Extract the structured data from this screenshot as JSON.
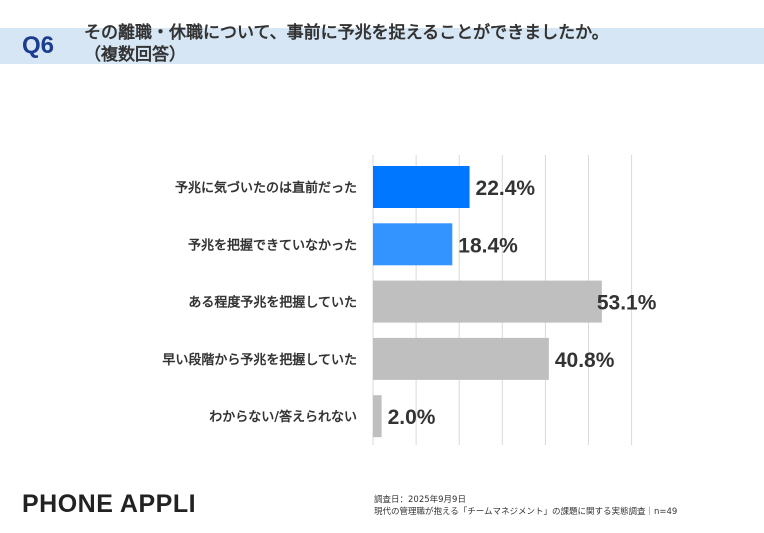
{
  "header": {
    "question_no": "Q6",
    "title": "その離職・休職について、事前に予兆を捉えることができましたか。",
    "subtitle": "（複数回答）"
  },
  "chart_data": {
    "type": "bar",
    "orientation": "horizontal",
    "categories": [
      "予兆に気づいたのは直前だった",
      "予兆を把握できていなかった",
      "ある程度予兆を把握していた",
      "早い段階から予兆を把握していた",
      "わからない/答えられない"
    ],
    "values": [
      22.4,
      18.4,
      53.1,
      40.8,
      2.0
    ],
    "data_labels": [
      "22.4%",
      "18.4%",
      "53.1%",
      "40.8%",
      "2.0%"
    ],
    "colors": [
      "#0077ff",
      "#3394ff",
      "#bfbfbf",
      "#bfbfbf",
      "#bfbfbf"
    ],
    "xlim": [
      0,
      60
    ],
    "grid": true,
    "unit": "%"
  },
  "footer": {
    "logo": "PHONE APPLI",
    "survey_date": "調査日：2025年9月9日",
    "survey_name": "現代の管理職が抱える「チームマネジメント」の課題に関する実態調査｜n=49"
  }
}
